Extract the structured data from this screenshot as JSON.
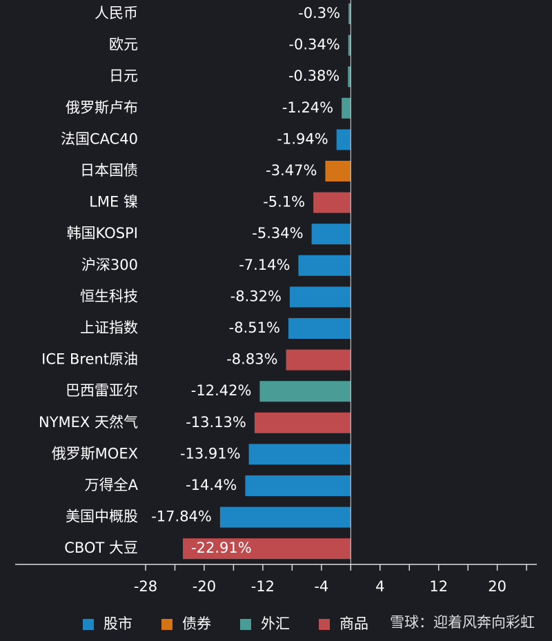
{
  "chart_data": {
    "type": "hbar",
    "categories": [
      "人民币",
      "欧元",
      "日元",
      "俄罗斯卢布",
      "法国CAC40",
      "日本国债",
      "LME 镍",
      "韩国KOSPI",
      "沪深300",
      "恒生科技",
      "上证指数",
      "ICE Brent原油",
      "巴西雷亚尔",
      "NYMEX 天然气",
      "俄罗斯MOEX",
      "万得全A",
      "美国中概股",
      "CBOT 大豆"
    ],
    "values": [
      -0.3,
      -0.34,
      -0.38,
      -1.24,
      -1.94,
      -3.47,
      -5.1,
      -5.34,
      -7.14,
      -8.32,
      -8.51,
      -8.83,
      -12.42,
      -13.13,
      -13.91,
      -14.4,
      -17.84,
      -22.91
    ],
    "value_labels": [
      "-0.3%",
      "-0.34%",
      "-0.38%",
      "-1.24%",
      "-1.94%",
      "-3.47%",
      "-5.1%",
      "-5.34%",
      "-7.14%",
      "-8.32%",
      "-8.51%",
      "-8.83%",
      "-12.42%",
      "-13.13%",
      "-13.91%",
      "-14.4%",
      "-17.84%",
      "-22.91%"
    ],
    "colors": [
      "#4a9c96",
      "#4a9c96",
      "#4a9c96",
      "#4a9c96",
      "#1d86c5",
      "#d47417",
      "#bf4b4e",
      "#1d86c5",
      "#1d86c5",
      "#1d86c5",
      "#1d86c5",
      "#bf4b4e",
      "#4a9c96",
      "#bf4b4e",
      "#1d86c5",
      "#1d86c5",
      "#1d86c5",
      "#bf4b4e"
    ],
    "xlim": [
      -45.8,
      25.4
    ],
    "xticks": [
      -28,
      -20,
      -12,
      -4,
      4,
      12,
      20
    ],
    "xminorticks": [
      -24,
      -16,
      -8,
      0,
      8,
      16,
      24
    ],
    "legend": [
      {
        "name": "股市",
        "color": "#1d86c5"
      },
      {
        "name": "债券",
        "color": "#d47417"
      },
      {
        "name": "外汇",
        "color": "#4a9c96"
      },
      {
        "name": "商品",
        "color": "#bf4b4e"
      }
    ],
    "watermark": "雪球：迎着风奔向彩虹"
  }
}
